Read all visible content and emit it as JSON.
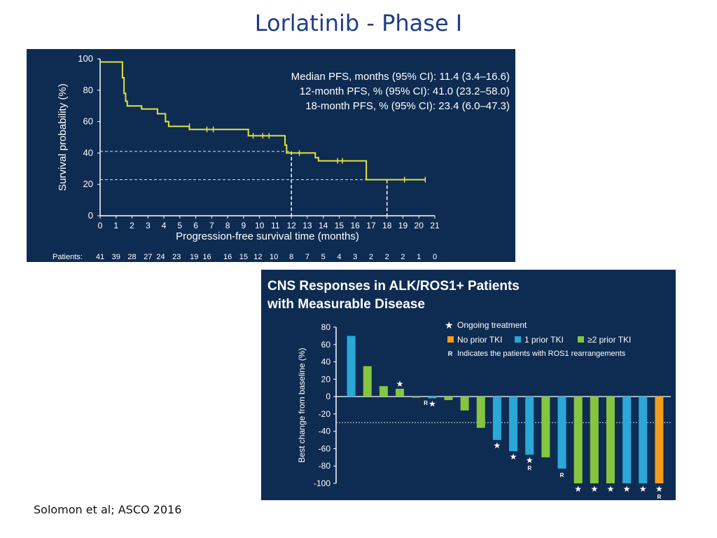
{
  "slide": {
    "title": "Lorlatinib - Phase I",
    "footer": "Solomon et al; ASCO 2016"
  },
  "colors": {
    "panel_bg": "#0e2c52",
    "km_curve": "#e3e335",
    "axis_text": "#ffffff",
    "no_prior": "#f39c1f",
    "one_prior": "#2aa8d8",
    "two_prior": "#86c540",
    "title_blue": "#1f3c88"
  },
  "chart_data": [
    {
      "type": "line",
      "title": "",
      "xlabel": "Progression-free survival time (months)",
      "ylabel": "Survival probability (%)",
      "xlim": [
        0,
        21
      ],
      "ylim": [
        0,
        100
      ],
      "x_ticks": [
        "0",
        "1",
        "2",
        "3",
        "4",
        "5",
        "6",
        "7",
        "8",
        "9",
        "10",
        "11",
        "12",
        "13",
        "14",
        "15",
        "16",
        "17",
        "18",
        "19",
        "20",
        "21"
      ],
      "y_ticks": [
        "0",
        "20",
        "40",
        "60",
        "80",
        "100"
      ],
      "stats": [
        "Median PFS, months (95% CI): 11.4 (3.4–16.6)",
        "12-month PFS, % (95% CI): 41.0 (23.2–58.0)",
        "18-month PFS, % (95% CI): 23.4 (6.0–47.3)"
      ],
      "series": [
        {
          "name": "PFS",
          "steps": [
            [
              0,
              98
            ],
            [
              1.3,
              98
            ],
            [
              1.4,
              88
            ],
            [
              1.5,
              78
            ],
            [
              1.6,
              73
            ],
            [
              1.7,
              70
            ],
            [
              2.5,
              70
            ],
            [
              2.6,
              68
            ],
            [
              3.5,
              68
            ],
            [
              3.6,
              65
            ],
            [
              4,
              65
            ],
            [
              4.1,
              60
            ],
            [
              4.3,
              57
            ],
            [
              5.5,
              57
            ],
            [
              5.6,
              55
            ],
            [
              9.2,
              55
            ],
            [
              9.3,
              51
            ],
            [
              11.5,
              51
            ],
            [
              11.6,
              45
            ],
            [
              11.7,
              40
            ],
            [
              13.4,
              40
            ],
            [
              13.5,
              37
            ],
            [
              13.7,
              35
            ],
            [
              16.6,
              35
            ],
            [
              16.7,
              23
            ],
            [
              20.4,
              23
            ]
          ],
          "censor": [
            [
              5.6,
              57
            ],
            [
              6.7,
              55
            ],
            [
              7.1,
              55
            ],
            [
              9.6,
              51
            ],
            [
              10.2,
              51
            ],
            [
              10.6,
              51
            ],
            [
              12.5,
              40
            ],
            [
              14.9,
              35
            ],
            [
              15.2,
              35
            ],
            [
              19.1,
              23
            ],
            [
              20.4,
              23
            ]
          ]
        }
      ],
      "reference_lines": [
        {
          "x": 12,
          "y": 41
        },
        {
          "x": 18,
          "y": 23
        }
      ],
      "at_risk_label": "Patients:",
      "at_risk": [
        {
          "x": 0,
          "n": "41"
        },
        {
          "x": 1,
          "n": "39"
        },
        {
          "x": 2,
          "n": "28"
        },
        {
          "x": 3,
          "n": "27"
        },
        {
          "x": 3.8,
          "n": "24"
        },
        {
          "x": 4.8,
          "n": "23"
        },
        {
          "x": 5.9,
          "n": "19"
        },
        {
          "x": 6.7,
          "n": "16"
        },
        {
          "x": 8,
          "n": "16"
        },
        {
          "x": 9,
          "n": "15"
        },
        {
          "x": 9.9,
          "n": "12"
        },
        {
          "x": 10.9,
          "n": "10"
        },
        {
          "x": 12,
          "n": "8"
        },
        {
          "x": 13,
          "n": "7"
        },
        {
          "x": 14,
          "n": "5"
        },
        {
          "x": 15,
          "n": "4"
        },
        {
          "x": 16,
          "n": "3"
        },
        {
          "x": 17,
          "n": "2"
        },
        {
          "x": 18,
          "n": "2"
        },
        {
          "x": 19,
          "n": "2"
        },
        {
          "x": 20,
          "n": "1"
        },
        {
          "x": 21,
          "n": "0"
        }
      ]
    },
    {
      "type": "bar",
      "title": "CNS Responses in ALK/ROS1+ Patients",
      "title_line2": "with Measurable Disease",
      "ylabel": "Best change from baseline (%)",
      "ylim": [
        -100,
        80
      ],
      "y_ticks": [
        "80",
        "60",
        "40",
        "20",
        "0",
        "-20",
        "-40",
        "-60",
        "-80",
        "-100"
      ],
      "threshold": -30,
      "legend": {
        "ongoing": "Ongoing treatment",
        "no_prior": "No prior TKI",
        "one_prior": "1 prior TKI",
        "two_prior": "≥2 prior TKI",
        "ros1_marker": "R",
        "ros1_text": "Indicates the patients with ROS1 rearrangements"
      },
      "star_glyph": "★",
      "bars": [
        {
          "value": 70,
          "group": "one_prior",
          "ongoing": false,
          "ros1": false
        },
        {
          "value": 35,
          "group": "two_prior",
          "ongoing": false,
          "ros1": false
        },
        {
          "value": 12,
          "group": "two_prior",
          "ongoing": false,
          "ros1": false
        },
        {
          "value": 9,
          "group": "two_prior",
          "ongoing": true,
          "ros1": false
        },
        {
          "value": 0,
          "group": "two_prior",
          "ongoing": false,
          "ros1": true
        },
        {
          "value": -2,
          "group": "one_prior",
          "ongoing": true,
          "ros1": false
        },
        {
          "value": -4,
          "group": "two_prior",
          "ongoing": false,
          "ros1": false
        },
        {
          "value": -16,
          "group": "two_prior",
          "ongoing": false,
          "ros1": false
        },
        {
          "value": -36,
          "group": "two_prior",
          "ongoing": false,
          "ros1": false
        },
        {
          "value": -50,
          "group": "one_prior",
          "ongoing": true,
          "ros1": false
        },
        {
          "value": -63,
          "group": "one_prior",
          "ongoing": true,
          "ros1": false
        },
        {
          "value": -67,
          "group": "one_prior",
          "ongoing": true,
          "ros1": true
        },
        {
          "value": -70,
          "group": "two_prior",
          "ongoing": false,
          "ros1": false
        },
        {
          "value": -83,
          "group": "one_prior",
          "ongoing": false,
          "ros1": true
        },
        {
          "value": -100,
          "group": "two_prior",
          "ongoing": true,
          "ros1": false
        },
        {
          "value": -100,
          "group": "two_prior",
          "ongoing": true,
          "ros1": false
        },
        {
          "value": -100,
          "group": "two_prior",
          "ongoing": true,
          "ros1": false
        },
        {
          "value": -100,
          "group": "one_prior",
          "ongoing": true,
          "ros1": false
        },
        {
          "value": -100,
          "group": "one_prior",
          "ongoing": true,
          "ros1": false
        },
        {
          "value": -100,
          "group": "no_prior",
          "ongoing": true,
          "ros1": true
        }
      ]
    }
  ]
}
